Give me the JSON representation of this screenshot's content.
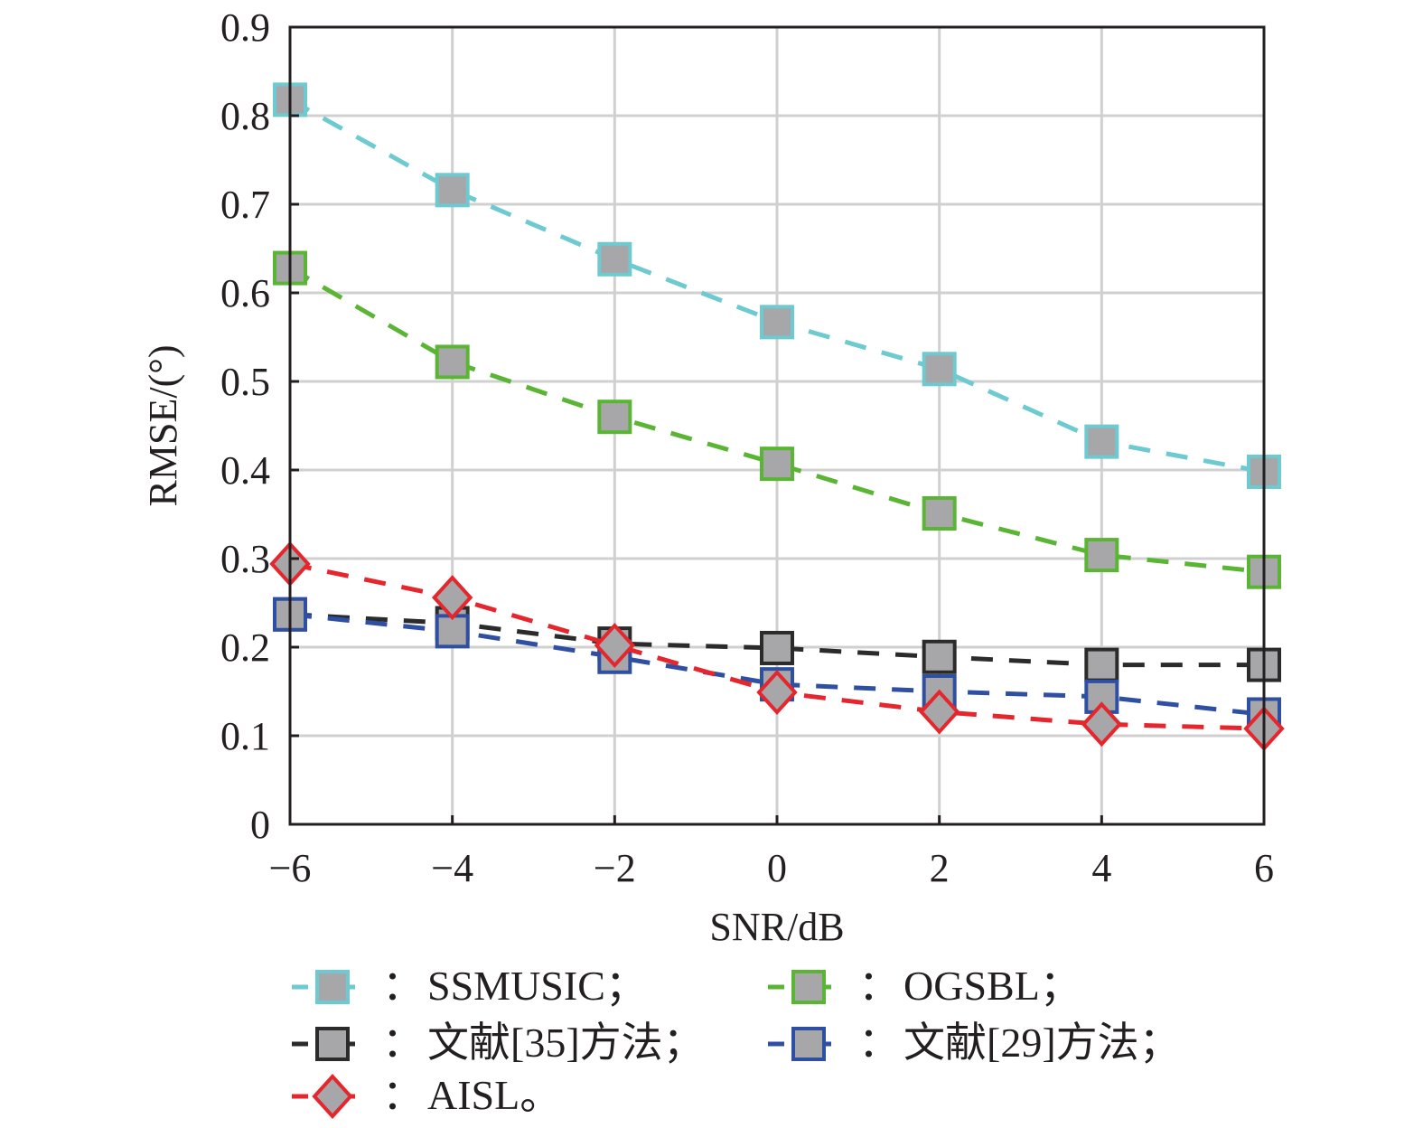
{
  "chart_data": {
    "type": "line",
    "title": "",
    "xlabel": "SNR/dB",
    "ylabel": "RMSE/(°)",
    "xlim": [
      -6,
      6
    ],
    "ylim": [
      0,
      0.9
    ],
    "grid": true,
    "x": [
      -6,
      -4,
      -2,
      0,
      2,
      4,
      6
    ],
    "x_tick_labels": [
      "−6",
      "−4",
      "−2",
      "0",
      "2",
      "4",
      "6"
    ],
    "y_ticks": [
      0,
      0.1,
      0.2,
      0.3,
      0.4,
      0.5,
      0.6,
      0.7,
      0.8,
      0.9
    ],
    "y_tick_labels": [
      "0",
      "0.1",
      "0.2",
      "0.3",
      "0.4",
      "0.5",
      "0.6",
      "0.7",
      "0.8",
      "0.9"
    ],
    "legend_placement": "bottom",
    "legend_separator": "：",
    "series": [
      {
        "name": "SSMUSIC",
        "legend_label": "SSMUSIC；",
        "color": "#6ccad0",
        "marker": "square",
        "values": [
          0.818,
          0.716,
          0.638,
          0.567,
          0.514,
          0.432,
          0.398
        ]
      },
      {
        "name": "OGSBL",
        "legend_label": "OGSBL；",
        "color": "#5ab535",
        "marker": "square",
        "values": [
          0.628,
          0.522,
          0.46,
          0.407,
          0.351,
          0.304,
          0.285
        ]
      },
      {
        "name": "文献[35]方法",
        "legend_label": "文献[35]方法；",
        "color": "#2b2b2b",
        "marker": "square",
        "values": [
          0.237,
          0.227,
          0.204,
          0.199,
          0.189,
          0.18,
          0.18
        ]
      },
      {
        "name": "文献[29]方法",
        "legend_label": "文献[29]方法；",
        "color": "#2f4fa3",
        "marker": "square",
        "values": [
          0.237,
          0.218,
          0.189,
          0.158,
          0.15,
          0.144,
          0.124
        ]
      },
      {
        "name": "AISL",
        "legend_label": "AISL。",
        "color": "#e5262d",
        "marker": "diamond",
        "values": [
          0.294,
          0.256,
          0.202,
          0.149,
          0.127,
          0.113,
          0.108
        ]
      }
    ],
    "marker_fill": "#a7a7a9",
    "grid_color": "#d0d0d0",
    "axis_color": "#231f20"
  }
}
